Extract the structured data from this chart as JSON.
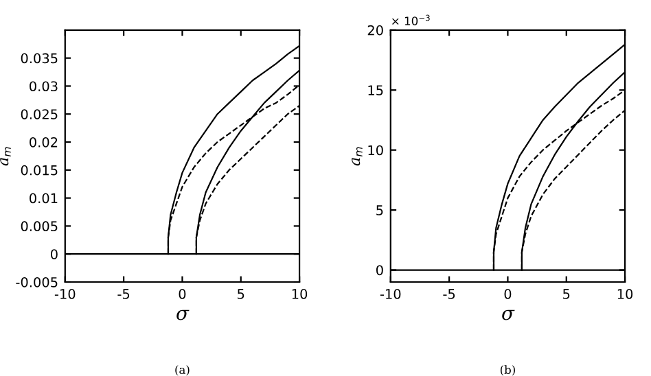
{
  "chart_data": [
    {
      "type": "line",
      "xlabel": "σ",
      "ylabel": "a$_{m}$",
      "annotations": [
        "(a)"
      ],
      "xlim": [
        -10,
        10
      ],
      "xticks": [
        -10,
        -5,
        0,
        5,
        10
      ],
      "ylim": [
        -0.005,
        0.04
      ],
      "yticks": [
        -0.005,
        0,
        0.005,
        0.01,
        0.015,
        0.02,
        0.025,
        0.03,
        0.035
      ],
      "grid": false,
      "legend": false,
      "marker": "none",
      "series": [
        {
          "color": "#000000",
          "line_style": "solid",
          "x": [
            -10,
            10
          ],
          "values": [
            0,
            0
          ]
        },
        {
          "color": "#000000",
          "line_style": "solid",
          "x": [
            -1.2,
            -1.2,
            -1,
            -0.5,
            0,
            1,
            2,
            3,
            4,
            5,
            6,
            7,
            8,
            9,
            10
          ],
          "values": [
            0,
            0.003,
            0.007,
            0.011,
            0.0145,
            0.019,
            0.022,
            0.025,
            0.027,
            0.029,
            0.031,
            0.0325,
            0.034,
            0.0357,
            0.0372
          ]
        },
        {
          "color": "#000000",
          "line_style": "dashed",
          "x": [
            -1.2,
            -1.2,
            -1,
            0,
            1,
            2,
            3,
            4,
            5,
            6,
            7,
            8,
            9,
            10
          ],
          "values": [
            0,
            0.003,
            0.006,
            0.012,
            0.0155,
            0.018,
            0.02,
            0.0215,
            0.023,
            0.0245,
            0.026,
            0.027,
            0.0285,
            0.0302
          ]
        },
        {
          "color": "#000000",
          "line_style": "solid",
          "x": [
            1.2,
            1.2,
            1.5,
            2,
            3,
            4,
            5,
            6,
            7,
            8,
            9,
            10
          ],
          "values": [
            0,
            0.003,
            0.007,
            0.011,
            0.0155,
            0.019,
            0.022,
            0.0245,
            0.027,
            0.029,
            0.031,
            0.0328
          ]
        },
        {
          "color": "#000000",
          "line_style": "dashed",
          "x": [
            1.2,
            1.2,
            1.5,
            2,
            3,
            4,
            5,
            6,
            7,
            8,
            9,
            10
          ],
          "values": [
            0,
            0.003,
            0.006,
            0.009,
            0.0125,
            0.015,
            0.017,
            0.019,
            0.021,
            0.023,
            0.025,
            0.0265
          ]
        }
      ]
    },
    {
      "type": "line",
      "xlabel": "σ",
      "ylabel": "a$_{m}$",
      "annotations": [
        "× 10$^{−3}$",
        "(b)"
      ],
      "xlim": [
        -10,
        10
      ],
      "xticks": [
        -10,
        -5,
        0,
        5,
        10
      ],
      "ylim": [
        -1,
        20
      ],
      "yticks": [
        0,
        5,
        10,
        15,
        20
      ],
      "grid": false,
      "legend": false,
      "marker": "none",
      "series": [
        {
          "color": "#000000",
          "line_style": "solid",
          "x": [
            -10,
            10
          ],
          "values": [
            0,
            0
          ]
        },
        {
          "color": "#000000",
          "line_style": "solid",
          "x": [
            -1.2,
            -1.2,
            -1,
            -0.5,
            0,
            1,
            2,
            3,
            4,
            5,
            6,
            7,
            8,
            9,
            10
          ],
          "values": [
            0,
            1.5,
            3.5,
            5.5,
            7.2,
            9.5,
            11,
            12.5,
            13.6,
            14.6,
            15.6,
            16.4,
            17.2,
            18,
            18.8
          ]
        },
        {
          "color": "#000000",
          "line_style": "dashed",
          "x": [
            -1.2,
            -1.2,
            -1,
            0,
            1,
            2,
            3,
            4,
            5,
            6,
            7,
            8,
            9,
            10
          ],
          "values": [
            0,
            1.5,
            3,
            6,
            7.8,
            9,
            10,
            10.8,
            11.6,
            12.3,
            13,
            13.7,
            14.3,
            15
          ]
        },
        {
          "color": "#000000",
          "line_style": "solid",
          "x": [
            1.2,
            1.2,
            1.5,
            2,
            3,
            4,
            5,
            6,
            7,
            8,
            9,
            10
          ],
          "values": [
            0,
            1.5,
            3.5,
            5.5,
            7.8,
            9.6,
            11.1,
            12.4,
            13.6,
            14.6,
            15.6,
            16.5
          ]
        },
        {
          "color": "#000000",
          "line_style": "dashed",
          "x": [
            1.2,
            1.2,
            1.5,
            2,
            3,
            4,
            5,
            6,
            7,
            8,
            9,
            10
          ],
          "values": [
            0,
            1.5,
            3,
            4.5,
            6.3,
            7.6,
            8.6,
            9.6,
            10.6,
            11.6,
            12.5,
            13.3
          ]
        }
      ]
    }
  ]
}
